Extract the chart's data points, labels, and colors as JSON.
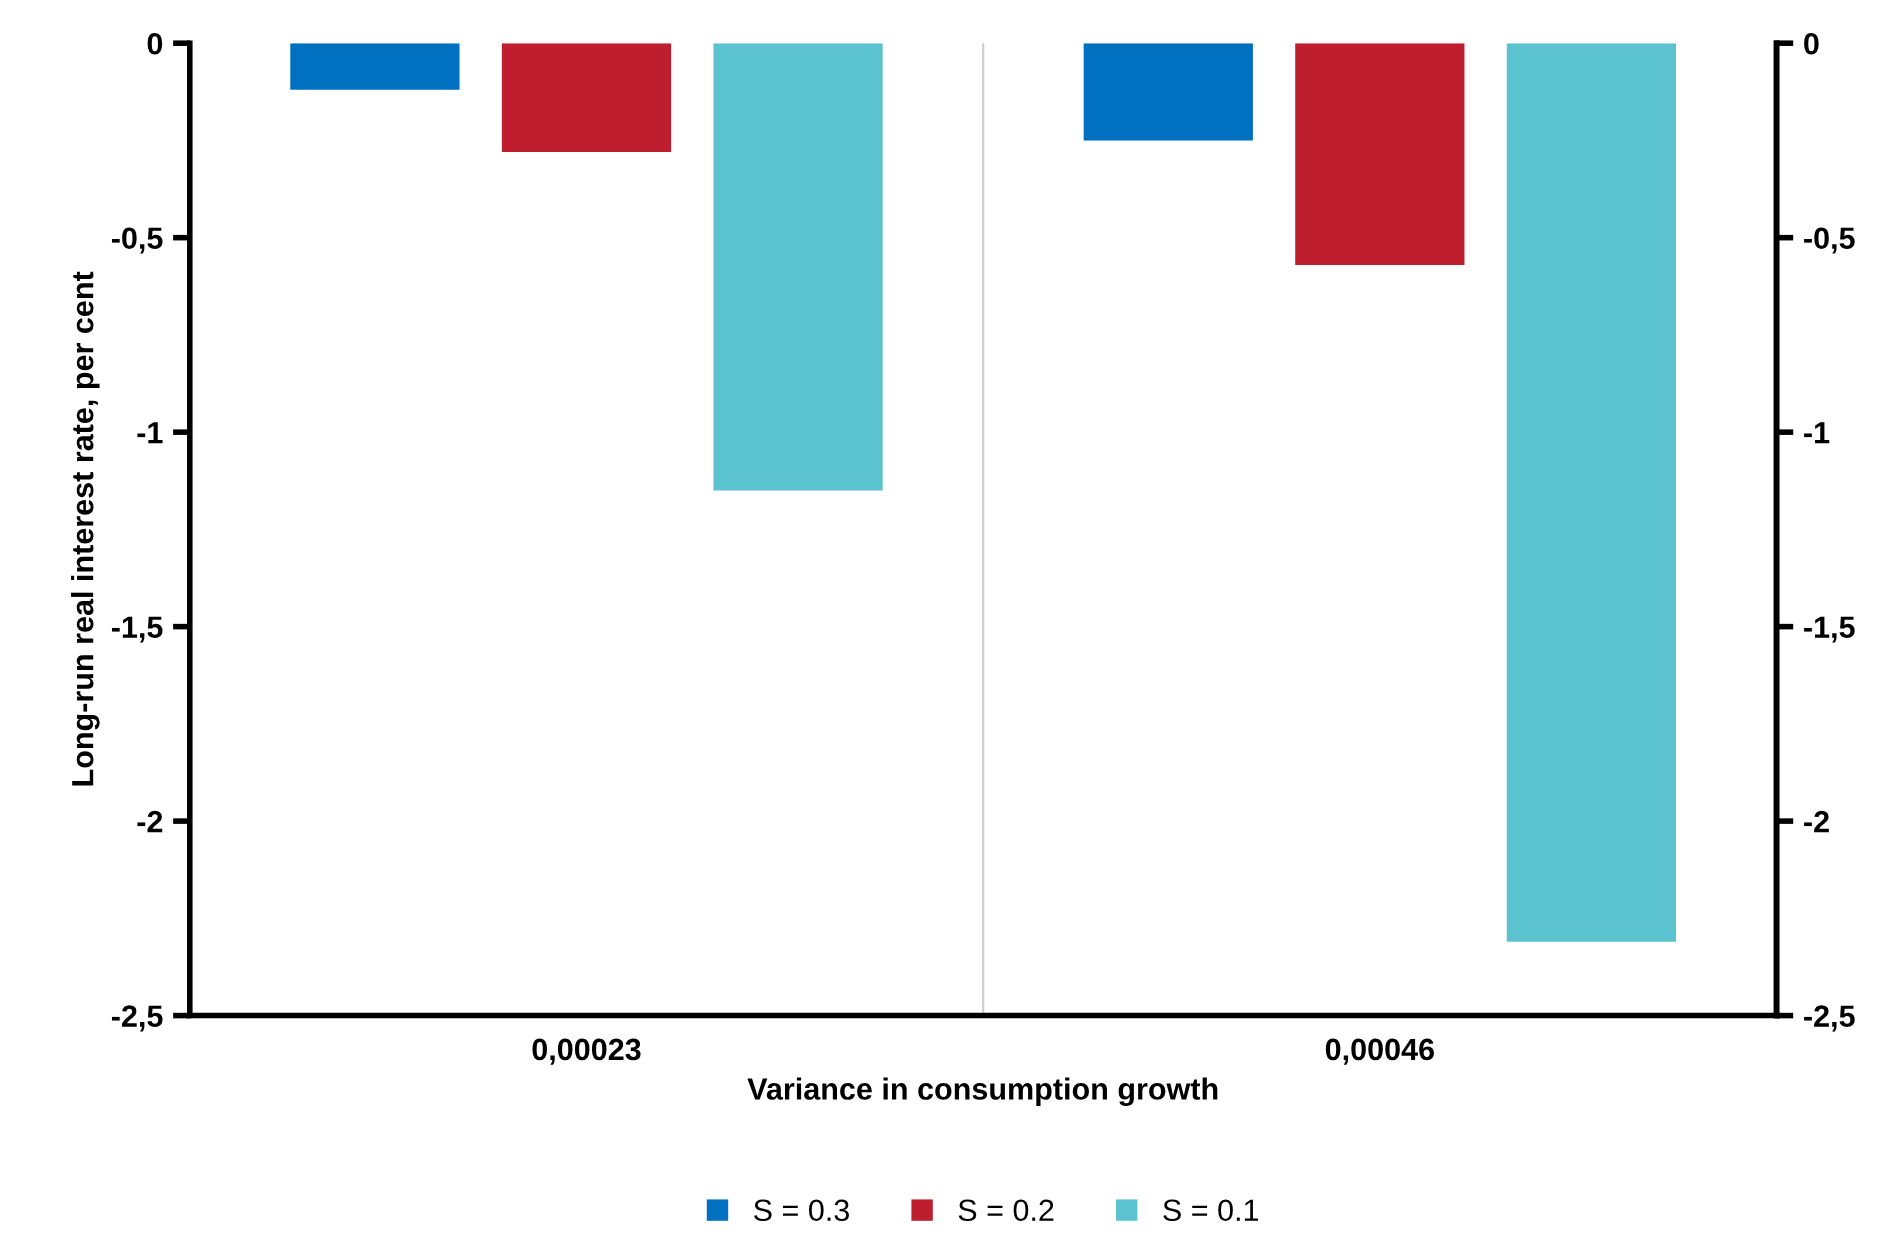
{
  "chart_data": {
    "type": "bar",
    "xlabel": "Variance in consumption growth",
    "ylabel": "Long-run real interest rate, per cent",
    "categories": [
      "0,00023",
      "0,00046"
    ],
    "series": [
      {
        "name": "S = 0.3",
        "color": "#0070c0",
        "values": [
          -0.12,
          -0.25
        ]
      },
      {
        "name": "S = 0.2",
        "color": "#be1e2d",
        "values": [
          -0.28,
          -0.57
        ]
      },
      {
        "name": "S = 0.1",
        "color": "#5bc2d0",
        "values": [
          -1.15,
          -2.31
        ]
      }
    ],
    "ylim": [
      -2.5,
      0
    ],
    "yticks": [
      0,
      {
        "value": -0.5,
        "label": "-0,5"
      },
      -1,
      {
        "value": -1.5,
        "label": "-1,5"
      },
      -2,
      {
        "value": -2.5,
        "label": "-2,5"
      }
    ],
    "y2lim": [
      -2.5,
      0
    ],
    "y2ticks": [
      0,
      {
        "value": -0.5,
        "label": "-0,5"
      },
      -1,
      {
        "value": -1.5,
        "label": "-1,5"
      },
      -2,
      {
        "value": -2.5,
        "label": "-2,5"
      }
    ],
    "grid": false,
    "legend": "bottom"
  }
}
